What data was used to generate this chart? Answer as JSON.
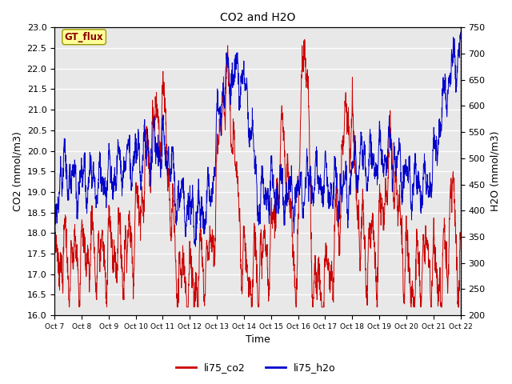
{
  "title": "CO2 and H2O",
  "xlabel": "Time",
  "ylabel_left": "CO2 (mmol/m3)",
  "ylabel_right": "H2O (mmol/m3)",
  "ylim_left": [
    16.0,
    23.0
  ],
  "ylim_right": [
    200,
    750
  ],
  "yticks_left": [
    16.0,
    16.5,
    17.0,
    17.5,
    18.0,
    18.5,
    19.0,
    19.5,
    20.0,
    20.5,
    21.0,
    21.5,
    22.0,
    22.5,
    23.0
  ],
  "yticks_right": [
    200,
    250,
    300,
    350,
    400,
    450,
    500,
    550,
    600,
    650,
    700,
    750
  ],
  "xtick_labels": [
    "Oct 7",
    "Oct 8",
    "Oct 9",
    "Oct 10",
    "Oct 11",
    "Oct 12",
    "Oct 13",
    "Oct 14",
    "Oct 15",
    "Oct 16",
    "Oct 17",
    "Oct 18",
    "Oct 19",
    "Oct 20",
    "Oct 21",
    "Oct 22"
  ],
  "color_co2": "#cc0000",
  "color_h2o": "#0000cc",
  "legend_box_label": "GT_flux",
  "legend_box_facecolor": "#ffff99",
  "legend_box_edgecolor": "#999900",
  "legend_entries": [
    "li75_co2",
    "li75_h2o"
  ],
  "bg_color": "#e8e8e8",
  "line_width": 0.7,
  "n_days": 15,
  "points_per_day": 144
}
